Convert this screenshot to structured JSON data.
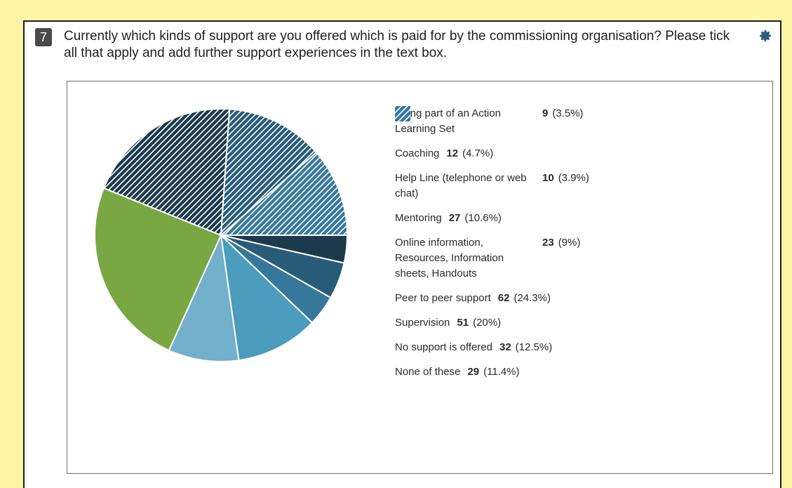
{
  "question": {
    "number": "7",
    "text": "Currently which kinds of support are you offered which is paid for by the commissioning organisation? Please tick all that apply and add further support experiences in the text box.",
    "settings_icon": "gear-icon"
  },
  "chart_data": {
    "type": "pie",
    "title": "",
    "start_angle_deg": 0,
    "direction": "clockwise-from-east",
    "slices": [
      {
        "label": "Being part of an Action Learning Set",
        "count": "9",
        "percent": "(3.5%)",
        "value": 9,
        "color": "#1b3a4b",
        "pattern": "solid"
      },
      {
        "label": "Coaching",
        "count": "12",
        "percent": "(4.7%)",
        "value": 12,
        "color": "#285c78",
        "pattern": "solid"
      },
      {
        "label": "Help Line (telephone or web chat)",
        "count": "10",
        "percent": "(3.9%)",
        "value": 10,
        "color": "#36789a",
        "pattern": "solid"
      },
      {
        "label": "Mentoring",
        "count": "27",
        "percent": "(10.6%)",
        "value": 27,
        "color": "#4b9cbd",
        "pattern": "solid"
      },
      {
        "label": "Online information, Resources, Information sheets, Handouts",
        "count": "23",
        "percent": "(9%)",
        "value": 23,
        "color": "#72b0cb",
        "pattern": "solid"
      },
      {
        "label": "Peer to peer support",
        "count": "62",
        "percent": "(24.3%)",
        "value": 62,
        "color": "#79a843",
        "pattern": "solid"
      },
      {
        "label": "Supervision",
        "count": "51",
        "percent": "(20%)",
        "value": 51,
        "color": "#1b3a4b",
        "pattern": "hatched"
      },
      {
        "label": "No support is offered",
        "count": "32",
        "percent": "(12.5%)",
        "value": 32,
        "color": "#285c78",
        "pattern": "hatched"
      },
      {
        "label": "None of these",
        "count": "29",
        "percent": "(11.4%)",
        "value": 29,
        "color": "#36789a",
        "pattern": "hatched"
      }
    ],
    "legend_placement": "right"
  }
}
